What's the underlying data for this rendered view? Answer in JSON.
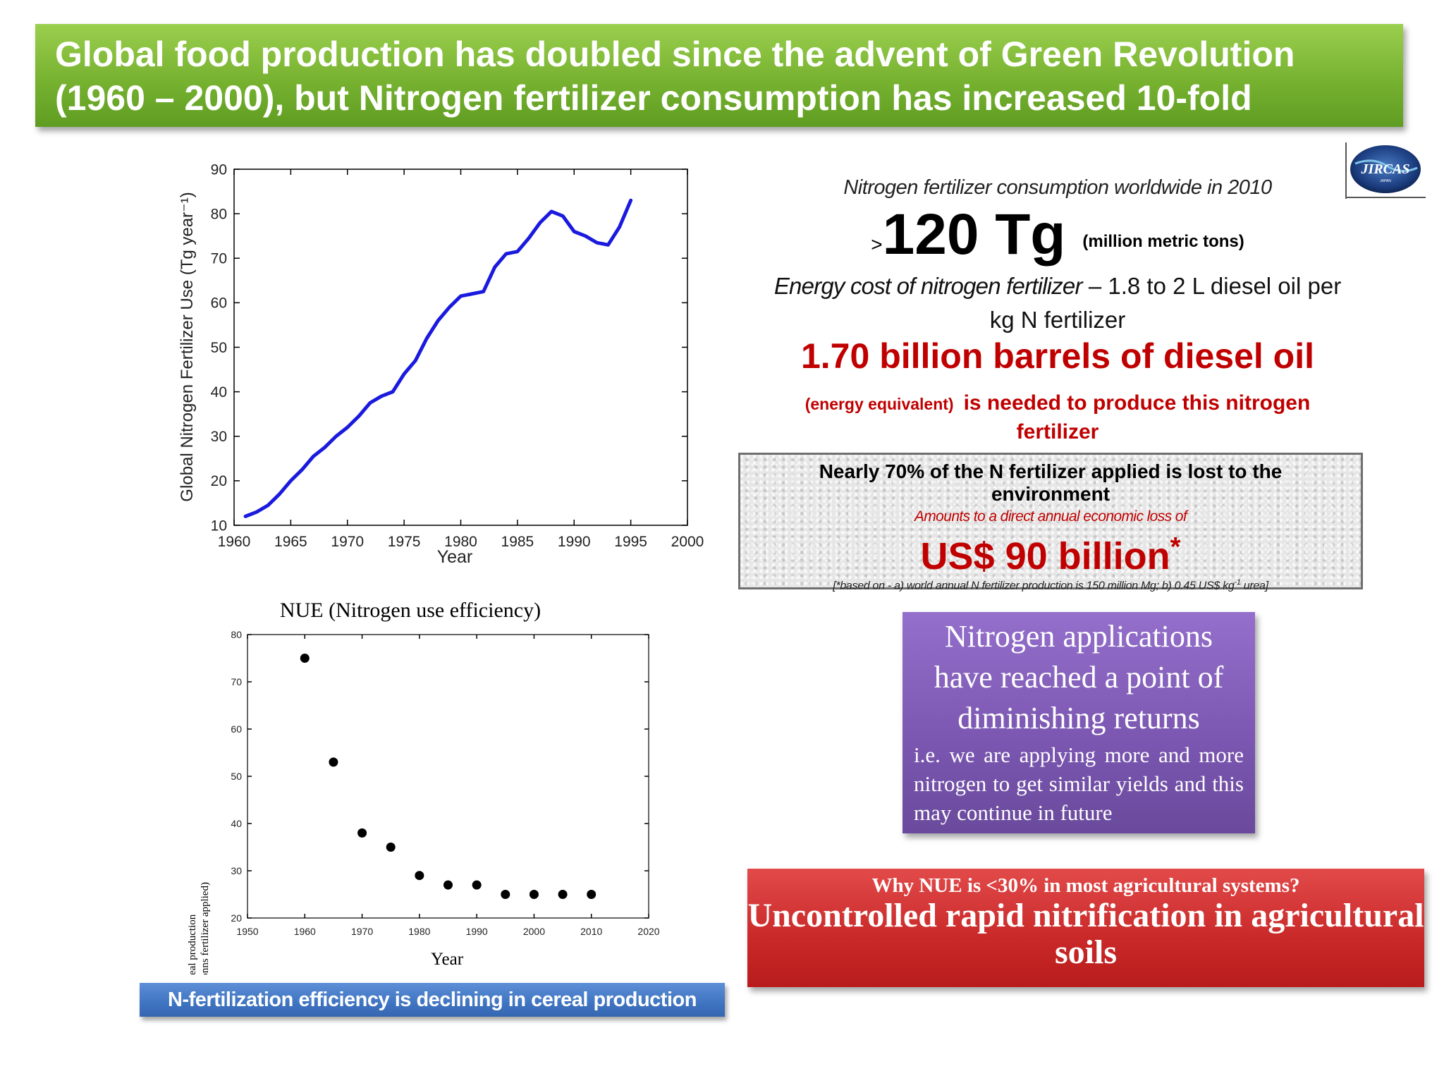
{
  "title": {
    "line1": "Global food production has doubled since the advent of Green Revolution",
    "line2": "(1960 – 2000), but Nitrogen fertilizer consumption has increased 10-fold"
  },
  "logo": {
    "text": "JIRCAS",
    "subtext": "JAPAN"
  },
  "info": {
    "consumption_label": "Nitrogen fertilizer consumption worldwide in 2010",
    "gt_symbol": ">",
    "amount": "120 Tg",
    "amount_unit": "(million metric tons)",
    "energy_italic": "Energy cost of nitrogen fertilizer",
    "energy_rest_line1": " – 1.8 to 2 L diesel oil per",
    "energy_line2": "kg N fertilizer",
    "barrels": "1.70 billion barrels of diesel oil",
    "energy_equivalent": "(energy equivalent)",
    "needed_text": "is needed to produce this nitrogen fertilizer"
  },
  "loss": {
    "heading": "Nearly 70% of the N fertilizer applied is lost to the environment",
    "subheading": "Amounts to a direct annual economic loss of",
    "amount": "US$ 90 billion",
    "asterisk": "*",
    "note_prefix": "[*based on - a) world annual N fertilizer production is 150 million Mg; b) 0.45 US$ kg",
    "note_sup": "-1",
    "note_suffix": " urea]"
  },
  "purple": {
    "main": "Nitrogen applications have reached a point of diminishing returns",
    "detail": "i.e. we are applying more and more nitrogen to get similar yields and this may continue in future"
  },
  "red": {
    "question": "Why NUE is <30% in most agricultural systems?",
    "answer": "Uncontrolled rapid nitrification in agricultural soils"
  },
  "nfe_banner": "N-fertilization efficiency is declining in cereal production",
  "colors": {
    "title_green": "#77b230",
    "alert_red": "#c00000",
    "line_blue": "#1a1adf",
    "purple": "#7a56b0",
    "banner_blue": "#3f74c2"
  },
  "chart_data": [
    {
      "type": "line",
      "title": "",
      "xlabel": "Year",
      "ylabel": "Global Nitrogen Fertilizer Use (Tg year⁻¹)",
      "xlim": [
        1960,
        2000
      ],
      "ylim": [
        10,
        90
      ],
      "xticks": [
        "1960",
        "1965",
        "1970",
        "1975",
        "1980",
        "1985",
        "1990",
        "1995",
        "2000"
      ],
      "yticks": [
        "10",
        "20",
        "30",
        "40",
        "50",
        "60",
        "70",
        "80",
        "90"
      ],
      "series": [
        {
          "name": "Global N fertilizer use",
          "x": [
            1961,
            1962,
            1963,
            1964,
            1965,
            1966,
            1967,
            1968,
            1969,
            1970,
            1971,
            1972,
            1973,
            1974,
            1975,
            1976,
            1977,
            1978,
            1979,
            1980,
            1981,
            1982,
            1983,
            1984,
            1985,
            1986,
            1987,
            1988,
            1989,
            1990,
            1991,
            1992,
            1993,
            1994,
            1995
          ],
          "values": [
            12,
            13,
            14.5,
            17,
            20,
            22.5,
            25.5,
            27.5,
            30,
            32,
            34.5,
            37.5,
            39,
            40,
            44,
            47,
            52,
            56,
            59,
            61.5,
            62,
            62.5,
            68,
            71,
            71.5,
            74.5,
            78,
            80.5,
            79.5,
            76,
            75,
            73.5,
            73,
            77,
            83
          ]
        }
      ]
    },
    {
      "type": "scatter",
      "title": "NUE (Nitrogen use efficiency)",
      "xlabel": "Year",
      "ylabel": "Nitrogen efficiency in cereal production",
      "ylabel2": "(mega tonnes cereal grain/megatonns fertilizer applied)",
      "xlim": [
        1950,
        2020
      ],
      "ylim": [
        20,
        80
      ],
      "xticks": [
        "1950",
        "1960",
        "1970",
        "1980",
        "1990",
        "2000",
        "2010",
        "2020"
      ],
      "yticks": [
        "20",
        "30",
        "40",
        "50",
        "60",
        "70",
        "80"
      ],
      "series": [
        {
          "name": "NUE",
          "x": [
            1960,
            1965,
            1970,
            1975,
            1980,
            1985,
            1990,
            1995,
            2000,
            2005,
            2010
          ],
          "values": [
            75,
            53,
            38,
            35,
            29,
            27,
            27,
            25,
            25,
            25,
            25
          ]
        }
      ]
    }
  ]
}
